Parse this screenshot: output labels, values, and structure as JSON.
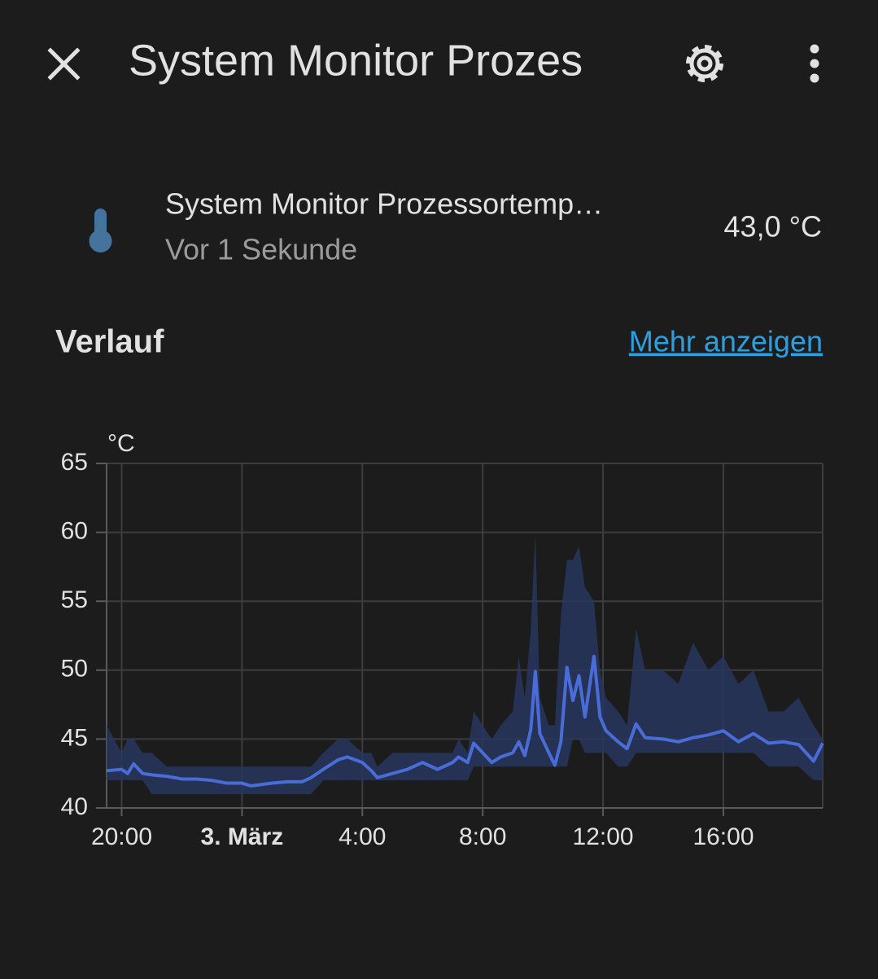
{
  "header": {
    "title": "System Monitor Prozes"
  },
  "entity": {
    "name": "System Monitor Prozessortemp…",
    "time": "Vor 1 Sekunde",
    "state": "43,0 °C"
  },
  "history": {
    "title": "Verlauf",
    "link": "Mehr anzeigen"
  },
  "chart_data": {
    "type": "line",
    "y_label": "°C",
    "x": [
      -4.5,
      -4,
      -3.8,
      -3.6,
      -3.3,
      -3,
      -2.5,
      -2,
      -1.5,
      -1,
      -0.5,
      0,
      0.3,
      1,
      1.5,
      2,
      2.3,
      2.7,
      3.2,
      3.5,
      4,
      4.3,
      4.5,
      5,
      5.5,
      6,
      6.5,
      7,
      7.2,
      7.5,
      7.7,
      8,
      8.3,
      8.6,
      9,
      9.2,
      9.4,
      9.6,
      9.75,
      9.9,
      10.2,
      10.4,
      10.6,
      10.8,
      11,
      11.2,
      11.4,
      11.7,
      11.9,
      12.1,
      12.5,
      12.8,
      13.1,
      13.4,
      14,
      14.5,
      15,
      15.5,
      16,
      16.5,
      17,
      17.5,
      18,
      18.5,
      19,
      19.3
    ],
    "xlim": [
      -4.5,
      19.3
    ],
    "xticks": [
      {
        "value": -4,
        "label": "20:00"
      },
      {
        "value": 0,
        "label": "3. März"
      },
      {
        "value": 4,
        "label": "4:00"
      },
      {
        "value": 8,
        "label": "8:00"
      },
      {
        "value": 12,
        "label": "12:00"
      },
      {
        "value": 16,
        "label": "16:00"
      }
    ],
    "ylim": [
      40,
      65
    ],
    "yticks": [
      40,
      45,
      50,
      55,
      60,
      65
    ],
    "grid": true,
    "series": [
      {
        "color": "#4a6cd6",
        "values": [
          42.7,
          42.8,
          42.5,
          43.2,
          42.5,
          42.4,
          42.3,
          42.1,
          42.1,
          42.0,
          41.8,
          41.8,
          41.6,
          41.8,
          41.9,
          41.9,
          42.2,
          42.8,
          43.5,
          43.7,
          43.3,
          42.7,
          42.2,
          42.5,
          42.8,
          43.3,
          42.8,
          43.3,
          43.7,
          43.3,
          44.7,
          44.0,
          43.3,
          43.7,
          44.0,
          44.8,
          43.8,
          45.7,
          49.9,
          45.4,
          44.0,
          43.1,
          44.8,
          50.2,
          47.8,
          49.6,
          46.6,
          51.0,
          46.6,
          45.6,
          44.8,
          44.3,
          46.1,
          45.1,
          45.0,
          44.8,
          45.1,
          45.3,
          45.6,
          44.8,
          45.4,
          44.7,
          44.8,
          44.6,
          43.4,
          44.7
        ]
      }
    ],
    "band": {
      "color": "#27365e",
      "lower": [
        42,
        42,
        42,
        42,
        42,
        41,
        41,
        41,
        41,
        41,
        41,
        41,
        41,
        41,
        41,
        41,
        41,
        42,
        42,
        42,
        42,
        42,
        42,
        42,
        42,
        42,
        42,
        42,
        42,
        42,
        43,
        43,
        43,
        43,
        43,
        43,
        43,
        43,
        43,
        43,
        43,
        43,
        43,
        43,
        45,
        45,
        44,
        44,
        44,
        44,
        43,
        43,
        44,
        44,
        44,
        44,
        44,
        44,
        44,
        44,
        44,
        43,
        43,
        43,
        42,
        42
      ],
      "upper": [
        46,
        44,
        45,
        45,
        44,
        44,
        43,
        43,
        43,
        43,
        43,
        43,
        43,
        43,
        43,
        43,
        43,
        44,
        45,
        45,
        44,
        44,
        43,
        44,
        44,
        44,
        44,
        44,
        45,
        44,
        47,
        46,
        45,
        46,
        47,
        51,
        48,
        53,
        60,
        48,
        46,
        46,
        54,
        58,
        58,
        59,
        56,
        55,
        50,
        48,
        47,
        46,
        53,
        50,
        50,
        49,
        52,
        50,
        51,
        49,
        50,
        47,
        47,
        48,
        46,
        45
      ]
    }
  }
}
